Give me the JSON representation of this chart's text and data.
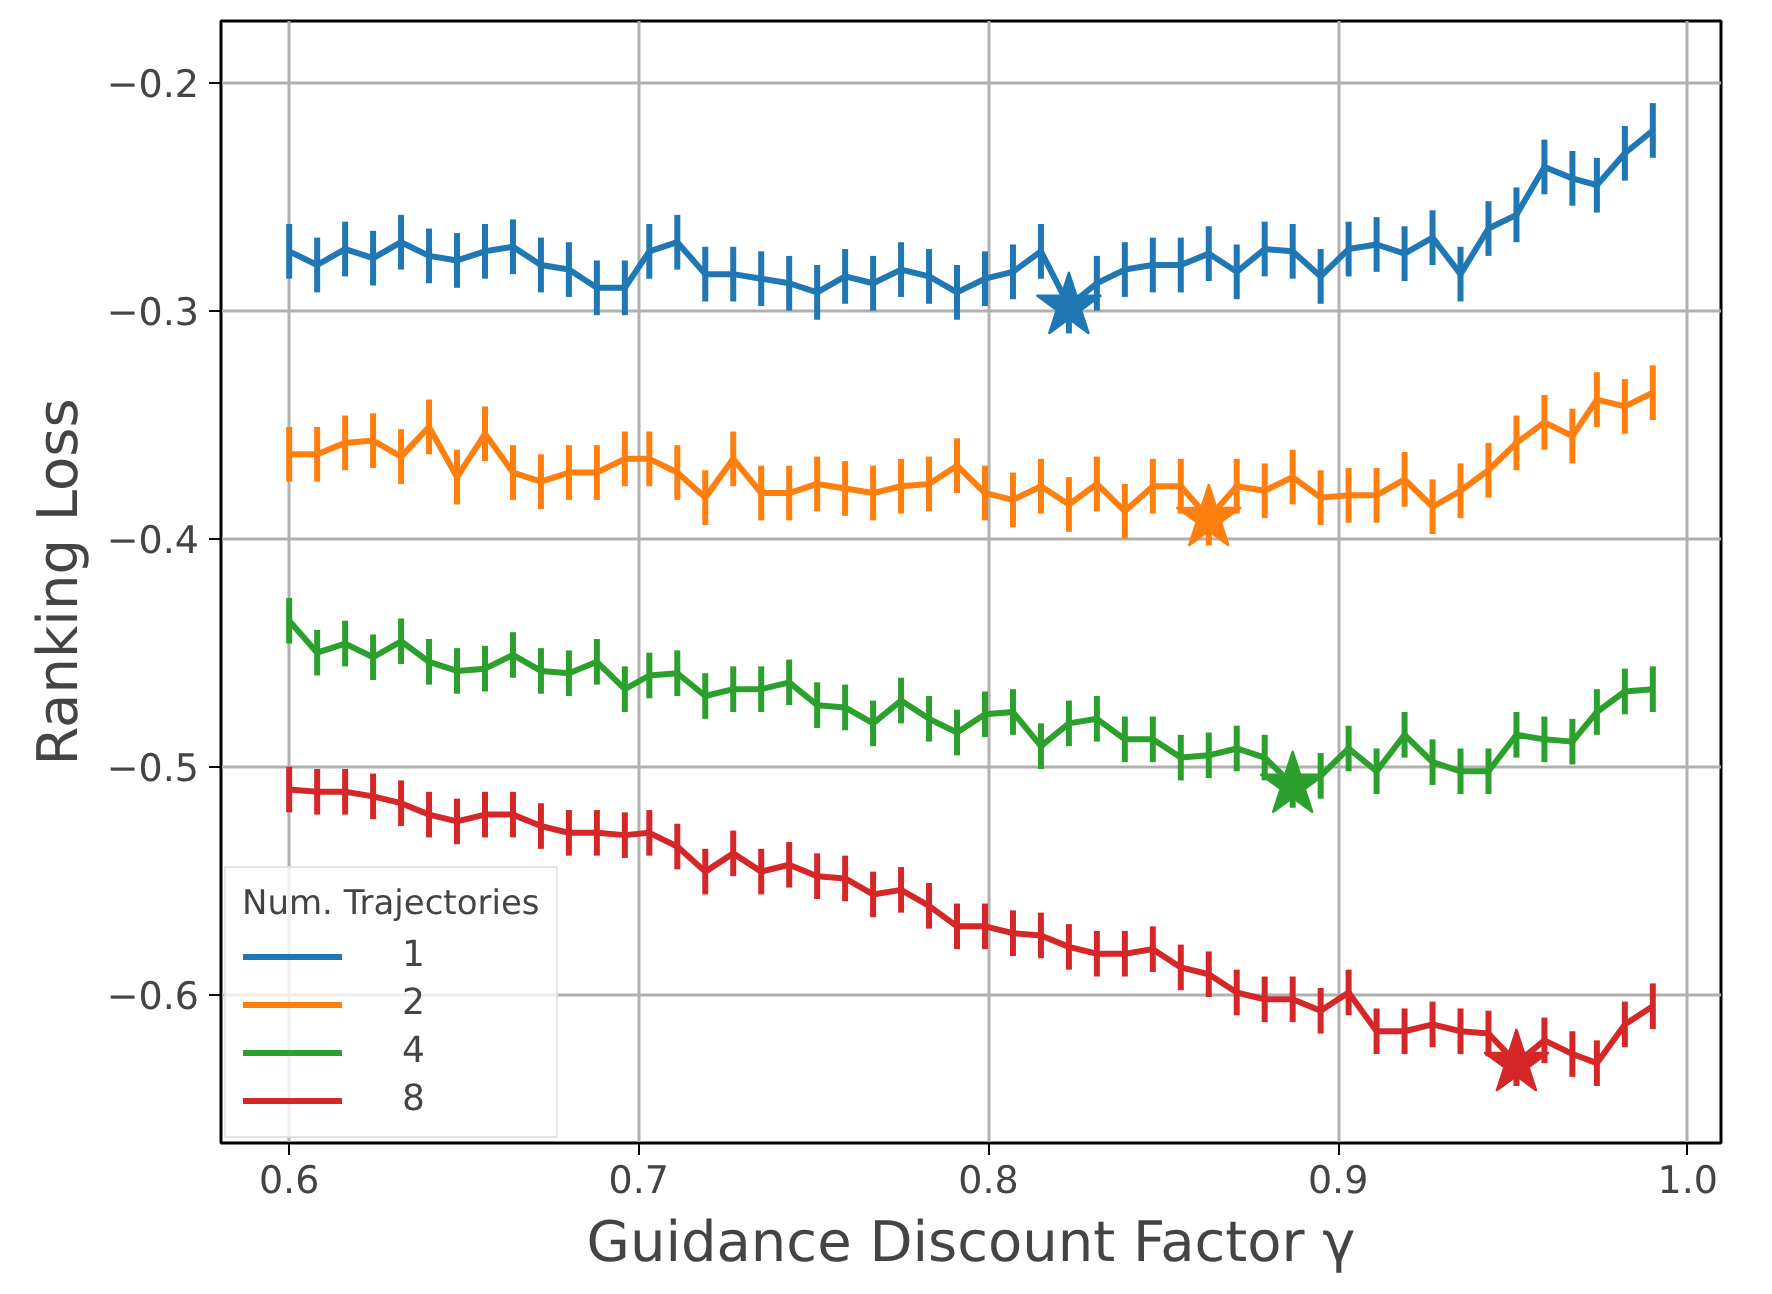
{
  "chart_data": {
    "type": "line",
    "xlabel": "Guidance Discount Factor γ",
    "ylabel": "Ranking Loss",
    "legend_title": "Num. Trajectories",
    "legend": "bottom left",
    "grid": true,
    "xlim": [
      0.5805,
      1.0095
    ],
    "ylim": [
      -0.665,
      -0.173
    ],
    "xticks": [
      0.6,
      0.7,
      0.8,
      0.9,
      {
        "value": 1.0,
        "label": "1.0"
      }
    ],
    "yticks": [
      {
        "value": -0.6,
        "label": "−0.6"
      },
      {
        "value": -0.5,
        "label": "−0.5"
      },
      {
        "value": -0.4,
        "label": "−0.4"
      },
      {
        "value": -0.3,
        "label": "−0.3"
      },
      {
        "value": -0.2,
        "label": "−0.2"
      }
    ],
    "x": [
      0.6,
      0.608,
      0.616,
      0.624,
      0.632,
      0.64,
      0.648,
      0.656,
      0.664,
      0.672,
      0.68,
      0.688,
      0.696,
      0.703,
      0.711,
      0.719,
      0.727,
      0.735,
      0.743,
      0.751,
      0.759,
      0.767,
      0.775,
      0.783,
      0.791,
      0.799,
      0.807,
      0.815,
      0.823,
      0.831,
      0.839,
      0.847,
      0.855,
      0.863,
      0.871,
      0.879,
      0.887,
      0.895,
      0.903,
      0.911,
      0.919,
      0.927,
      0.935,
      0.943,
      0.951,
      0.959,
      0.967,
      0.974,
      0.982,
      0.99
    ],
    "series": [
      {
        "name": "1",
        "color": "#1f77b4",
        "values": [
          -0.274,
          -0.28,
          -0.273,
          -0.277,
          -0.27,
          -0.276,
          -0.278,
          -0.274,
          -0.272,
          -0.28,
          -0.282,
          -0.29,
          -0.29,
          -0.274,
          -0.27,
          -0.284,
          -0.284,
          -0.286,
          -0.288,
          -0.292,
          -0.285,
          -0.288,
          -0.282,
          -0.285,
          -0.292,
          -0.286,
          -0.283,
          -0.274,
          -0.298,
          -0.288,
          -0.282,
          -0.28,
          -0.28,
          -0.275,
          -0.283,
          -0.273,
          -0.274,
          -0.285,
          -0.273,
          -0.271,
          -0.275,
          -0.268,
          -0.284,
          -0.264,
          -0.258,
          -0.237,
          -0.242,
          -0.245,
          -0.231,
          -0.221
        ],
        "errors": [
          0.012,
          0.012,
          0.012,
          0.012,
          0.012,
          0.012,
          0.012,
          0.012,
          0.012,
          0.012,
          0.012,
          0.012,
          0.012,
          0.012,
          0.012,
          0.012,
          0.012,
          0.012,
          0.012,
          0.012,
          0.012,
          0.012,
          0.012,
          0.012,
          0.012,
          0.012,
          0.012,
          0.012,
          0.012,
          0.012,
          0.012,
          0.012,
          0.012,
          0.012,
          0.012,
          0.012,
          0.012,
          0.012,
          0.012,
          0.012,
          0.012,
          0.012,
          0.012,
          0.012,
          0.012,
          0.012,
          0.012,
          0.012,
          0.012,
          0.012
        ]
      },
      {
        "name": "2",
        "color": "#ff7f0e",
        "values": [
          -0.363,
          -0.363,
          -0.358,
          -0.357,
          -0.364,
          -0.351,
          -0.373,
          -0.354,
          -0.371,
          -0.375,
          -0.371,
          -0.371,
          -0.365,
          -0.365,
          -0.371,
          -0.382,
          -0.365,
          -0.38,
          -0.38,
          -0.376,
          -0.378,
          -0.38,
          -0.377,
          -0.376,
          -0.368,
          -0.38,
          -0.383,
          -0.377,
          -0.385,
          -0.376,
          -0.388,
          -0.377,
          -0.377,
          -0.391,
          -0.377,
          -0.379,
          -0.373,
          -0.382,
          -0.381,
          -0.381,
          -0.374,
          -0.386,
          -0.379,
          -0.37,
          -0.358,
          -0.349,
          -0.355,
          -0.339,
          -0.342,
          -0.336
        ],
        "errors": [
          0.012,
          0.012,
          0.012,
          0.012,
          0.012,
          0.012,
          0.012,
          0.012,
          0.012,
          0.012,
          0.012,
          0.012,
          0.012,
          0.012,
          0.012,
          0.012,
          0.012,
          0.012,
          0.012,
          0.012,
          0.012,
          0.012,
          0.012,
          0.012,
          0.012,
          0.012,
          0.012,
          0.012,
          0.012,
          0.012,
          0.012,
          0.012,
          0.012,
          0.012,
          0.012,
          0.012,
          0.012,
          0.012,
          0.012,
          0.012,
          0.012,
          0.012,
          0.012,
          0.012,
          0.012,
          0.012,
          0.012,
          0.012,
          0.012,
          0.012
        ]
      },
      {
        "name": "4",
        "color": "#2ca02c",
        "values": [
          -0.436,
          -0.45,
          -0.446,
          -0.452,
          -0.445,
          -0.454,
          -0.458,
          -0.457,
          -0.451,
          -0.458,
          -0.459,
          -0.454,
          -0.466,
          -0.46,
          -0.459,
          -0.469,
          -0.466,
          -0.466,
          -0.463,
          -0.473,
          -0.474,
          -0.481,
          -0.471,
          -0.479,
          -0.485,
          -0.477,
          -0.476,
          -0.491,
          -0.481,
          -0.479,
          -0.488,
          -0.488,
          -0.496,
          -0.495,
          -0.492,
          -0.496,
          -0.508,
          -0.504,
          -0.492,
          -0.502,
          -0.486,
          -0.498,
          -0.502,
          -0.502,
          -0.486,
          -0.488,
          -0.489,
          -0.476,
          -0.467,
          -0.466
        ],
        "errors": [
          0.01,
          0.01,
          0.01,
          0.01,
          0.01,
          0.01,
          0.01,
          0.01,
          0.01,
          0.01,
          0.01,
          0.01,
          0.01,
          0.01,
          0.01,
          0.01,
          0.01,
          0.01,
          0.01,
          0.01,
          0.01,
          0.01,
          0.01,
          0.01,
          0.01,
          0.01,
          0.01,
          0.01,
          0.01,
          0.01,
          0.01,
          0.01,
          0.01,
          0.01,
          0.01,
          0.01,
          0.01,
          0.01,
          0.01,
          0.01,
          0.01,
          0.01,
          0.01,
          0.01,
          0.01,
          0.01,
          0.01,
          0.01,
          0.01,
          0.01
        ]
      },
      {
        "name": "8",
        "color": "#d62728",
        "values": [
          -0.51,
          -0.511,
          -0.511,
          -0.513,
          -0.516,
          -0.521,
          -0.524,
          -0.521,
          -0.521,
          -0.526,
          -0.529,
          -0.529,
          -0.53,
          -0.529,
          -0.535,
          -0.546,
          -0.538,
          -0.546,
          -0.543,
          -0.548,
          -0.549,
          -0.556,
          -0.554,
          -0.561,
          -0.57,
          -0.57,
          -0.573,
          -0.574,
          -0.579,
          -0.582,
          -0.582,
          -0.58,
          -0.588,
          -0.591,
          -0.599,
          -0.602,
          -0.602,
          -0.607,
          -0.599,
          -0.616,
          -0.616,
          -0.613,
          -0.616,
          -0.617,
          -0.63,
          -0.62,
          -0.626,
          -0.63,
          -0.613,
          -0.605
        ],
        "errors": [
          0.01,
          0.01,
          0.01,
          0.01,
          0.01,
          0.01,
          0.01,
          0.01,
          0.01,
          0.01,
          0.01,
          0.01,
          0.01,
          0.01,
          0.01,
          0.01,
          0.01,
          0.01,
          0.01,
          0.01,
          0.01,
          0.01,
          0.01,
          0.01,
          0.01,
          0.01,
          0.01,
          0.01,
          0.01,
          0.01,
          0.01,
          0.01,
          0.01,
          0.01,
          0.01,
          0.01,
          0.01,
          0.01,
          0.01,
          0.01,
          0.01,
          0.01,
          0.01,
          0.01,
          0.01,
          0.01,
          0.01,
          0.01,
          0.01,
          0.01
        ]
      },
      {
        "type": "scatter",
        "marker": "star",
        "color": "#1f77b4",
        "x": [
          0.823
        ],
        "values": [
          -0.298
        ]
      },
      {
        "type": "scatter",
        "marker": "star",
        "color": "#ff7f0e",
        "x": [
          0.863
        ],
        "values": [
          -0.391
        ]
      },
      {
        "type": "scatter",
        "marker": "star",
        "color": "#2ca02c",
        "x": [
          0.887
        ],
        "values": [
          -0.508
        ]
      },
      {
        "type": "scatter",
        "marker": "star",
        "color": "#d62728",
        "x": [
          0.951
        ],
        "values": [
          -0.63
        ]
      }
    ]
  }
}
